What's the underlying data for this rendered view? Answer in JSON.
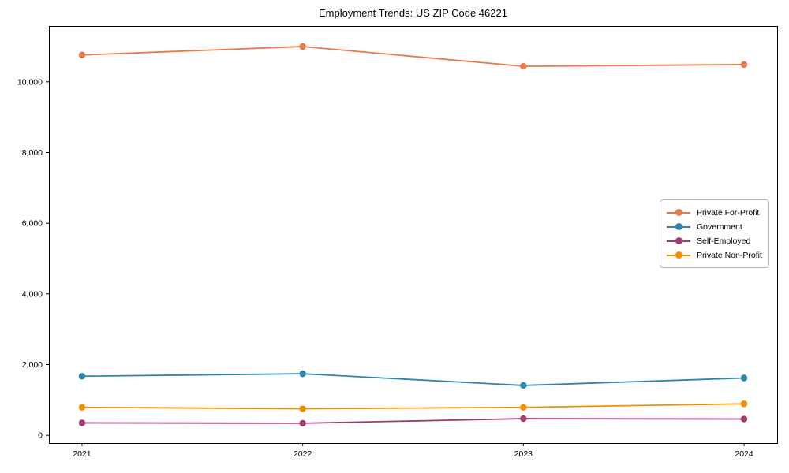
{
  "chart_data": {
    "type": "line",
    "title": "Employment Trends: US ZIP Code 46221",
    "xlabel": "",
    "ylabel": "",
    "x": [
      2021,
      2022,
      2023,
      2024
    ],
    "x_tick_labels": [
      "2021",
      "2022",
      "2023",
      "2024"
    ],
    "yticks": [
      0,
      2000,
      4000,
      6000,
      8000,
      10000
    ],
    "ytick_labels": [
      "0",
      "2,000",
      "4,000",
      "6,000",
      "8,000",
      "10,000"
    ],
    "xlim": [
      2020.85,
      2024.15
    ],
    "ylim": [
      -220,
      11580
    ],
    "grid": false,
    "marker": "circle",
    "legend_position": "center-right",
    "series": [
      {
        "name": "Private For-Profit",
        "color": "#E8794D",
        "values": [
          10760,
          11000,
          10440,
          10490
        ]
      },
      {
        "name": "Government",
        "color": "#2E86AB",
        "values": [
          1670,
          1740,
          1410,
          1620
        ]
      },
      {
        "name": "Self-Employed",
        "color": "#A23B72",
        "values": [
          350,
          340,
          470,
          460
        ]
      },
      {
        "name": "Private Non-Profit",
        "color": "#F18F01",
        "values": [
          790,
          750,
          790,
          890
        ]
      }
    ]
  }
}
